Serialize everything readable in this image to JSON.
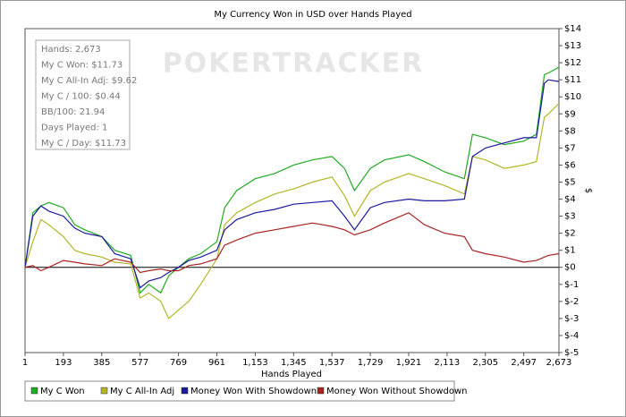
{
  "chart_data": {
    "type": "line",
    "title": "My Currency Won in USD over Hands Played",
    "x_label": "Hands Played",
    "y_label": "$",
    "watermark": "POKERTRACKER",
    "annotations": [
      "Hands: 2,673",
      "My C Won: $11.73",
      "My C All-In Adj: $9.62",
      "My C / 100: $0.44",
      "BB/100: 21.94",
      "Days Played: 1",
      "My C / Day: $11.73"
    ],
    "x": [
      1,
      40,
      80,
      120,
      193,
      250,
      300,
      385,
      450,
      530,
      577,
      620,
      680,
      720,
      769,
      820,
      880,
      961,
      1000,
      1060,
      1153,
      1250,
      1345,
      1440,
      1537,
      1600,
      1650,
      1729,
      1800,
      1921,
      2000,
      2100,
      2200,
      2240,
      2305,
      2400,
      2497,
      2560,
      2600,
      2620,
      2673
    ],
    "series": [
      {
        "name": "My C Won",
        "color": "#22aa22",
        "values": [
          0,
          3.2,
          3.6,
          3.8,
          3.5,
          2.5,
          2.2,
          1.8,
          1.0,
          0.7,
          -1.5,
          -1.0,
          -1.5,
          -0.5,
          0,
          0.5,
          0.8,
          1.5,
          3.5,
          4.5,
          5.2,
          5.5,
          6.0,
          6.3,
          6.5,
          5.8,
          4.5,
          5.8,
          6.3,
          6.6,
          6.2,
          5.6,
          5.2,
          7.8,
          7.6,
          7.2,
          7.4,
          7.8,
          11.3,
          11.4,
          11.73
        ]
      },
      {
        "name": "My C All-In Adj",
        "color": "#b5b52a",
        "values": [
          0,
          1.5,
          2.8,
          2.5,
          1.8,
          1.0,
          0.8,
          0.6,
          0.3,
          0.2,
          -1.8,
          -1.5,
          -2.0,
          -3.0,
          -2.5,
          -2.0,
          -1.0,
          0.5,
          2.5,
          3.2,
          3.8,
          4.3,
          4.6,
          5.0,
          5.3,
          4.2,
          3.0,
          4.5,
          5.0,
          5.5,
          5.2,
          4.8,
          4.3,
          6.5,
          6.3,
          5.8,
          6.0,
          6.2,
          8.8,
          9.0,
          9.62
        ]
      },
      {
        "name": "Money Won With Showdown",
        "color": "#1a1aa0",
        "values": [
          0,
          3.0,
          3.6,
          3.3,
          3.0,
          2.3,
          2.0,
          1.8,
          0.8,
          0.5,
          -1.2,
          -0.8,
          -0.6,
          -0.3,
          0,
          0.4,
          0.6,
          1.0,
          2.2,
          2.8,
          3.2,
          3.4,
          3.7,
          3.8,
          3.9,
          3.0,
          2.2,
          3.5,
          3.8,
          4.0,
          3.9,
          3.9,
          4.0,
          6.5,
          7.0,
          7.3,
          7.6,
          7.6,
          10.8,
          11.0,
          10.9
        ]
      },
      {
        "name": "Money Won Without Showdown",
        "color": "#aa2222",
        "values": [
          0,
          0.1,
          -0.2,
          0,
          0.4,
          0.3,
          0.2,
          0.1,
          0.5,
          0.3,
          -0.3,
          -0.2,
          -0.1,
          -0.2,
          -0.2,
          0.1,
          0.2,
          0.5,
          1.3,
          1.6,
          2.0,
          2.2,
          2.4,
          2.6,
          2.4,
          2.2,
          1.9,
          2.2,
          2.6,
          3.2,
          2.5,
          2.0,
          1.8,
          1.0,
          0.8,
          0.6,
          0.3,
          0.4,
          0.6,
          0.7,
          0.8
        ]
      }
    ],
    "xlim": [
      1,
      2673
    ],
    "xticks": [
      1,
      193,
      385,
      577,
      769,
      961,
      {
        "value": 1153,
        "label": "1,153"
      },
      {
        "value": 1345,
        "label": "1,345"
      },
      {
        "value": 1537,
        "label": "1,537"
      },
      {
        "value": 1729,
        "label": "1,729"
      },
      {
        "value": 1921,
        "label": "1,921"
      },
      {
        "value": 2113,
        "label": "2,113"
      },
      {
        "value": 2305,
        "label": "2,305"
      },
      {
        "value": 2497,
        "label": "2,497"
      },
      {
        "value": 2673,
        "label": "2,673"
      }
    ],
    "ylim": [
      -5,
      14
    ],
    "yticks": [
      {
        "value": 14,
        "label": "$14"
      },
      {
        "value": 13,
        "label": "$13"
      },
      {
        "value": 12,
        "label": "$12"
      },
      {
        "value": 11,
        "label": "$11"
      },
      {
        "value": 10,
        "label": "$10"
      },
      {
        "value": 9,
        "label": "$9"
      },
      {
        "value": 8,
        "label": "$8"
      },
      {
        "value": 7,
        "label": "$7"
      },
      {
        "value": 6,
        "label": "$6"
      },
      {
        "value": 5,
        "label": "$5"
      },
      {
        "value": 4,
        "label": "$4"
      },
      {
        "value": 3,
        "label": "$3"
      },
      {
        "value": 2,
        "label": "$2"
      },
      {
        "value": 1,
        "label": "$1"
      },
      {
        "value": 0,
        "label": "$0"
      },
      {
        "value": -1,
        "label": "$-1"
      },
      {
        "value": -2,
        "label": "$-2"
      },
      {
        "value": -3,
        "label": "$-3"
      },
      {
        "value": -4,
        "label": "$-4"
      },
      {
        "value": -5,
        "label": "$-5"
      }
    ],
    "grid": false,
    "legend": "bottom"
  }
}
